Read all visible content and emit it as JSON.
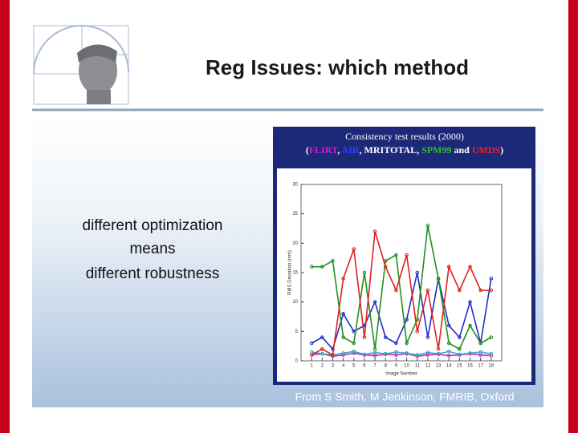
{
  "slide": {
    "title": "Reg Issues: which method",
    "body_lines": [
      "different optimization",
      "means",
      "different robustness"
    ],
    "credit": "From S Smith, M Jenkinson, FMRIB, Oxford"
  },
  "chart_data": {
    "type": "line",
    "title": "Consistency test results (2000)",
    "subtitle_separators": [
      "(",
      ", ",
      ", ",
      ", ",
      " and ",
      ")"
    ],
    "x_label": "Image Number",
    "y_label": "RMS Deviation (mm)",
    "x": [
      1,
      2,
      3,
      4,
      5,
      6,
      7,
      8,
      9,
      10,
      11,
      12,
      13,
      14,
      15,
      16,
      17,
      18
    ],
    "xlim": [
      0,
      19
    ],
    "xticks": [
      1,
      2,
      3,
      4,
      5,
      6,
      7,
      8,
      9,
      10,
      11,
      12,
      13,
      14,
      15,
      16,
      17,
      18
    ],
    "ylim": [
      0,
      30
    ],
    "yticks": [
      0,
      5,
      10,
      15,
      20,
      25,
      30
    ],
    "series": [
      {
        "name": "FLIRT",
        "color": "#d020d0",
        "legend_color": "#d020d0",
        "values": [
          1,
          1.2,
          0.8,
          1,
          1.3,
          1,
          0.9,
          1.1,
          1,
          1.2,
          0.8,
          1,
          1.1,
          0.9,
          1,
          1.2,
          1,
          0.9
        ]
      },
      {
        "name": "AIR",
        "color": "#2030c0",
        "legend_color": "#3040ff",
        "values": [
          3,
          4,
          2,
          8,
          5,
          6,
          10,
          4,
          3,
          7,
          15,
          4,
          14,
          6,
          4,
          10,
          3,
          14
        ]
      },
      {
        "name": "MRITOTAL",
        "color": "#30b0b0",
        "legend_color": "#ffffff",
        "values": [
          1.5,
          1.2,
          1,
          1.3,
          1.6,
          1.1,
          1.4,
          1.2,
          1.5,
          1.3,
          1,
          1.4,
          1.2,
          1.6,
          1.1,
          1.3,
          1.5,
          1.2
        ]
      },
      {
        "name": "SPM99",
        "color": "#209020",
        "legend_color": "#30c030",
        "values": [
          16,
          16,
          17,
          4,
          3,
          15,
          2,
          17,
          18,
          3,
          7,
          23,
          14,
          3,
          2,
          6,
          3,
          4
        ]
      },
      {
        "name": "UMDS",
        "color": "#e02020",
        "legend_color": "#ff2020",
        "values": [
          1,
          2,
          1,
          14,
          19,
          4,
          22,
          16,
          12,
          18,
          5,
          12,
          2,
          16,
          12,
          16,
          12,
          12
        ]
      }
    ]
  }
}
